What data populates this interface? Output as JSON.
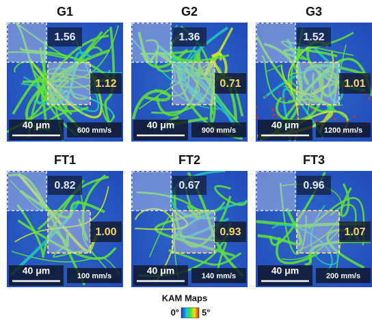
{
  "panels": [
    {
      "title": "G1",
      "white_value": "1.56",
      "yellow_value": "1.12",
      "scale_bar": "40 μm",
      "speed": "600 mm/s"
    },
    {
      "title": "G2",
      "white_value": "1.36",
      "yellow_value": "0.71",
      "scale_bar": "40 μm",
      "speed": "900 mm/s"
    },
    {
      "title": "G3",
      "white_value": "1.52",
      "yellow_value": "1.01",
      "scale_bar": "40 μm",
      "speed": "1200 mm/s"
    },
    {
      "title": "FT1",
      "white_value": "0.82",
      "yellow_value": "1.00",
      "scale_bar": "40 μm",
      "speed": "100 mm/s"
    },
    {
      "title": "FT2",
      "white_value": "0.67",
      "yellow_value": "0.93",
      "scale_bar": "40 μm",
      "speed": "140 mm/s"
    },
    {
      "title": "FT3",
      "white_value": "0.96",
      "yellow_value": "1.07",
      "scale_bar": "40 μm",
      "speed": "200 mm/s"
    }
  ],
  "colorbar": {
    "title": "KAM Maps",
    "min": "0°",
    "max": "5°"
  }
}
